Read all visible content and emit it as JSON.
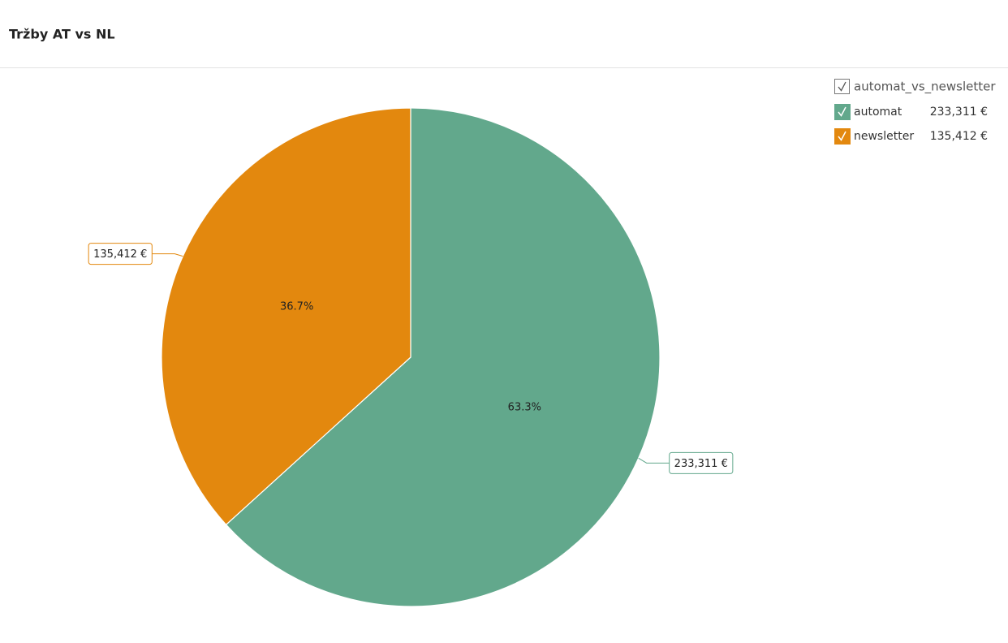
{
  "chart_data": {
    "type": "pie",
    "title": "Tržby AT vs NL",
    "legend_title": "automat_vs_newsletter",
    "categories": [
      "automat",
      "newsletter"
    ],
    "values": [
      233311,
      135412
    ],
    "value_labels": [
      "233,311 €",
      "135,412 €"
    ],
    "percent_labels": [
      "63.3%",
      "36.7%"
    ],
    "colors": [
      "#62a88c",
      "#e3880e"
    ]
  }
}
